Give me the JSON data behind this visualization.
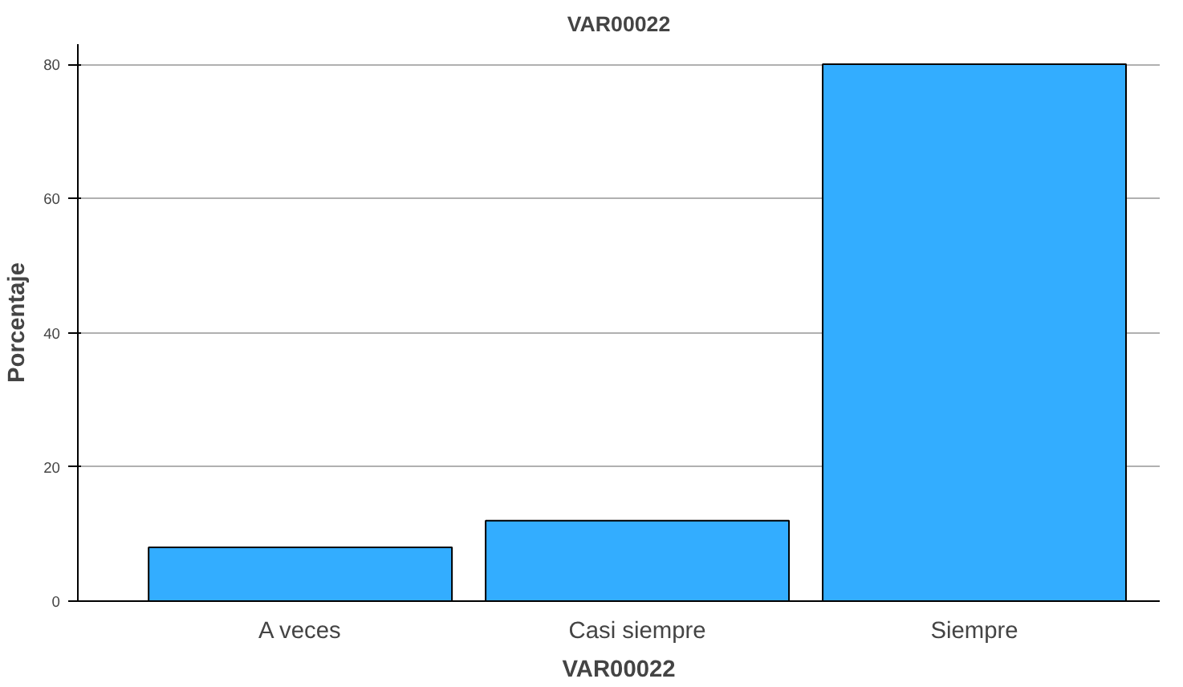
{
  "chart_data": {
    "type": "bar",
    "title": "VAR00022",
    "xlabel": "VAR00022",
    "ylabel": "Porcentaje",
    "categories": [
      "A veces",
      "Casi siempre",
      "Siempre"
    ],
    "values": [
      8,
      12,
      80
    ],
    "color": "#33adff",
    "ylim": [
      0,
      83
    ],
    "yticks": [
      0,
      20,
      40,
      60,
      80
    ],
    "grid": "y"
  }
}
